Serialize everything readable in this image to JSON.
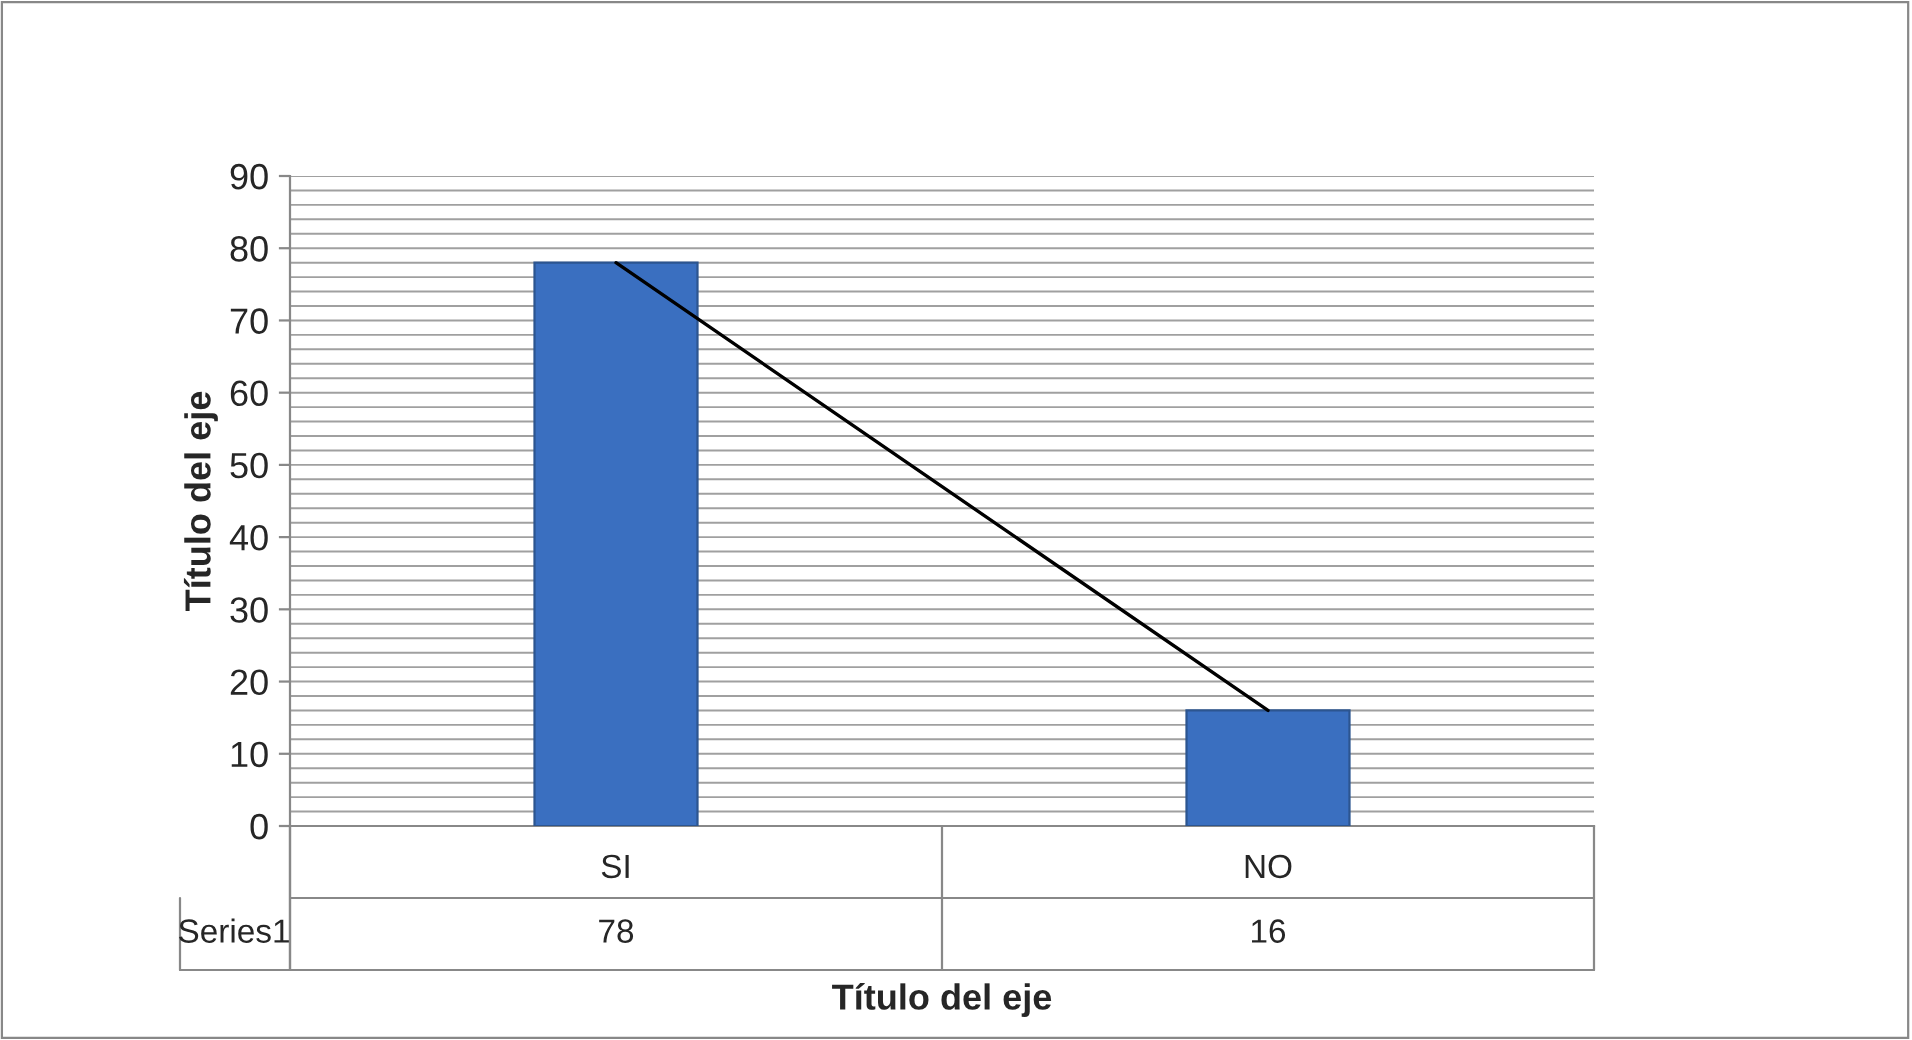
{
  "chart_data": {
    "type": "bar",
    "xlabel": "Título del eje",
    "ylabel": "Título del eje",
    "categories": [
      "SI",
      "NO"
    ],
    "series": [
      {
        "name": "Series1",
        "color": "#3a6fc0",
        "values": [
          78,
          16
        ],
        "value_labels": [
          "78",
          "16"
        ]
      },
      {
        "type": "line",
        "color": "#000000",
        "values": [
          78,
          16
        ]
      }
    ],
    "ylim": [
      0,
      90
    ],
    "yticks": [
      0,
      10,
      20,
      30,
      40,
      50,
      60,
      70,
      80,
      90
    ],
    "grid": "y"
  }
}
